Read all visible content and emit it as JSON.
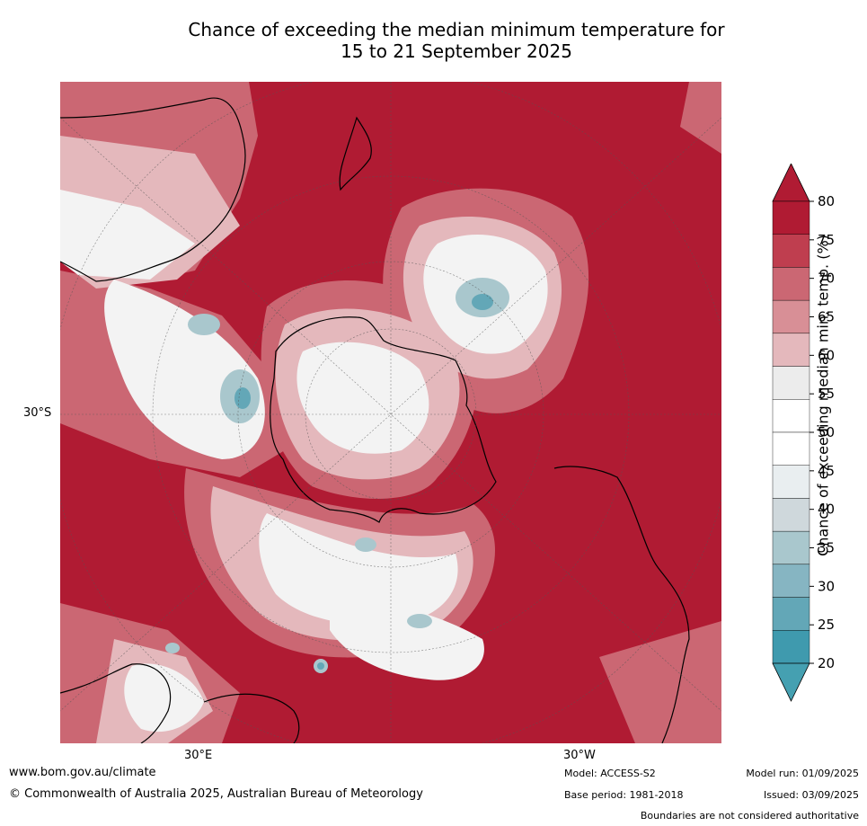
{
  "title": {
    "line1": "Chance of exceeding the median minimum temperature for",
    "line2": "15 to 21 September 2025"
  },
  "map": {
    "lat_label": "30°S",
    "lon_labels": [
      "30°E",
      "30°W"
    ]
  },
  "colorbar": {
    "label": "Chance of exceeding median min. temp. (%)",
    "ticks": [
      "80",
      "75",
      "70",
      "65",
      "60",
      "55",
      "50",
      "45",
      "40",
      "35",
      "30",
      "25",
      "20"
    ],
    "colors": [
      "#b01b33",
      "#bf3e4f",
      "#cb6773",
      "#d88f96",
      "#e4b8bc",
      "#ececec",
      "#ffffff",
      "#ffffff",
      "#e9eef0",
      "#cfd8dc",
      "#a9c7cd",
      "#86b5c2",
      "#63a7b7",
      "#3f9aae"
    ],
    "extend_high_color": "#b01b33",
    "extend_low_color": "#45a0b1"
  },
  "footer": {
    "url": "www.bom.gov.au/climate",
    "copyright": "© Commonwealth of Australia 2025, Australian Bureau of Meteorology",
    "model": "Model: ACCESS-S2",
    "base_period": "Base period: 1981-2018",
    "model_run": "Model run: 01/09/2025",
    "issued": "Issued: 03/09/2025",
    "disclaimer": "Boundaries are not considered authoritative"
  }
}
